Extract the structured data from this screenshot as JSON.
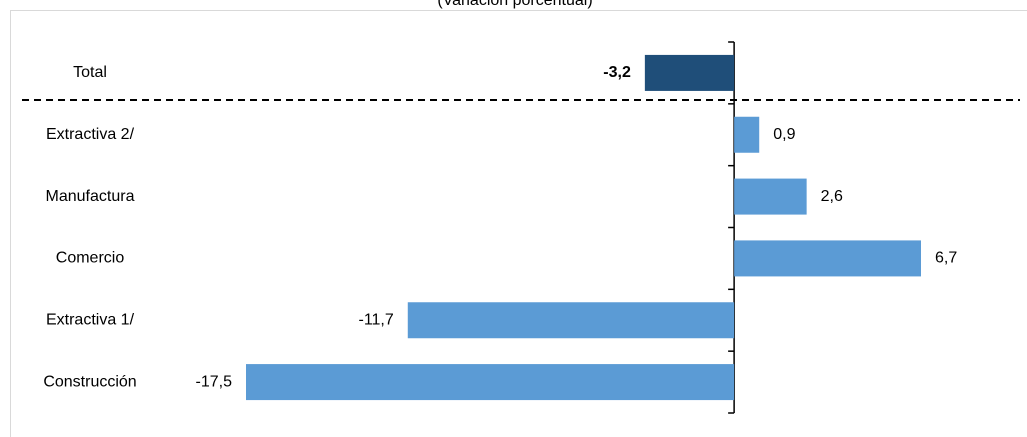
{
  "chart_data": {
    "type": "bar",
    "orientation": "horizontal",
    "subtitle": "(Variación porcentual)",
    "categories": [
      "Total",
      "Extractiva 2/",
      "Manufactura",
      "Comercio",
      "Extractiva 1/",
      "Construcción"
    ],
    "values": [
      -3.2,
      0.9,
      2.6,
      6.7,
      -11.7,
      -17.5
    ],
    "value_labels": [
      "-3,2",
      "0,9",
      "2,6",
      "6,7",
      "-11,7",
      "-17,5"
    ],
    "colors": [
      "#1f4e79",
      "#5b9bd5",
      "#5b9bd5",
      "#5b9bd5",
      "#5b9bd5",
      "#5b9bd5"
    ]
  }
}
